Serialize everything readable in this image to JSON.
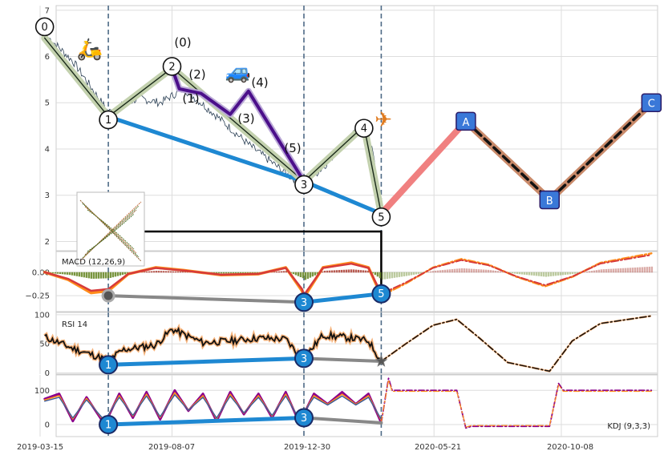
{
  "chart_data": {
    "type": "line",
    "x_dates": [
      "2019-03-15",
      "2019-08-07",
      "2019-12-30",
      "2020-05-21",
      "2020-10-08"
    ],
    "x_range": [
      "2019-03-15",
      "2021-01-20"
    ],
    "vlines": [
      "2019-05-29",
      "2019-12-30",
      "2020-03-24"
    ],
    "panels": [
      {
        "id": "price",
        "ylim": [
          1.8,
          7.1
        ],
        "yticks": [
          2,
          3,
          4,
          5,
          6,
          7
        ],
        "price_keypoints": [
          [
            "2019-03-25",
            6.4
          ],
          [
            "2019-04-20",
            5.9
          ],
          [
            "2019-05-29",
            4.8
          ],
          [
            "2019-07-01",
            5.1
          ],
          [
            "2019-07-25",
            5.0
          ],
          [
            "2019-08-20",
            5.3
          ],
          [
            "2019-09-20",
            4.8
          ],
          [
            "2019-10-30",
            4.1
          ],
          [
            "2019-12-15",
            3.4
          ],
          [
            "2019-12-30",
            3.25
          ],
          [
            "2020-01-20",
            3.6
          ],
          [
            "2020-02-15",
            4.2
          ],
          [
            "2020-03-05",
            4.5
          ],
          [
            "2020-03-15",
            3.9
          ],
          [
            "2020-03-24",
            2.6
          ]
        ],
        "waves": [
          {
            "label": "0",
            "date": "2019-03-20",
            "value": 6.4
          },
          {
            "label": "1",
            "date": "2019-05-29",
            "value": 4.7
          },
          {
            "label": "2",
            "date": "2019-08-07",
            "value": 5.75
          },
          {
            "label": "3",
            "date": "2019-12-30",
            "value": 3.3
          },
          {
            "label": "4",
            "date": "2020-03-05",
            "value": 4.5
          },
          {
            "label": "5",
            "date": "2020-03-24",
            "value": 2.6
          }
        ],
        "wave_markers": [
          "0",
          "1",
          "2",
          "3",
          "4",
          "5"
        ],
        "wave_labels_sub": [
          "(0)",
          "(1)",
          "(2)",
          "(3)",
          "(4)",
          "(5)"
        ],
        "sub_waves": [
          [
            "2019-08-07",
            5.75
          ],
          [
            "2019-08-15",
            5.3
          ],
          [
            "2019-09-08",
            5.2
          ],
          [
            "2019-10-10",
            4.75
          ],
          [
            "2019-10-30",
            5.25
          ],
          [
            "2019-12-30",
            3.3
          ]
        ],
        "projection": [
          {
            "label": "A",
            "date": "2020-06-25",
            "value": 4.6
          },
          {
            "label": "B",
            "date": "2020-09-25",
            "value": 2.9
          },
          {
            "label": "C",
            "date": "2021-01-15",
            "value": 5.0
          }
        ]
      },
      {
        "id": "macd",
        "label": "MACD (12,26,9)",
        "ylim": [
          -0.42,
          0.22
        ],
        "yticks": [
          0.0,
          -0.25
        ],
        "ytick_labels": [
          "0.00",
          "−0.25"
        ],
        "macd_keypoints": [
          [
            "2019-03-20",
            0.0
          ],
          [
            "2019-04-15",
            -0.08
          ],
          [
            "2019-05-10",
            -0.22
          ],
          [
            "2019-05-29",
            -0.2
          ],
          [
            "2019-06-20",
            -0.02
          ],
          [
            "2019-07-20",
            0.05
          ],
          [
            "2019-08-20",
            0.02
          ],
          [
            "2019-09-30",
            -0.03
          ],
          [
            "2019-11-10",
            -0.02
          ],
          [
            "2019-12-10",
            0.05
          ],
          [
            "2019-12-28",
            -0.2
          ],
          [
            "2019-12-30",
            -0.27
          ],
          [
            "2020-01-20",
            0.05
          ],
          [
            "2020-02-20",
            0.1
          ],
          [
            "2020-03-10",
            0.05
          ],
          [
            "2020-03-24",
            -0.25
          ]
        ],
        "forecast_keypoints": [
          [
            "2020-03-24",
            -0.25
          ],
          [
            "2020-04-20",
            -0.12
          ],
          [
            "2020-05-20",
            0.05
          ],
          [
            "2020-06-20",
            0.14
          ],
          [
            "2020-07-20",
            0.08
          ],
          [
            "2020-08-20",
            -0.05
          ],
          [
            "2020-09-20",
            -0.15
          ],
          [
            "2020-10-20",
            -0.05
          ],
          [
            "2020-11-20",
            0.1
          ],
          [
            "2021-01-15",
            0.2
          ]
        ],
        "divergence": [
          {
            "label": "1",
            "date": "2019-05-29",
            "value": -0.25
          },
          {
            "label": "3",
            "date": "2019-12-30",
            "value": -0.32
          },
          {
            "label": "5",
            "date": "2020-03-24",
            "value": -0.23
          }
        ]
      },
      {
        "id": "rsi",
        "label": "RSI 14",
        "ylim": [
          -2,
          104
        ],
        "yticks": [
          0,
          50,
          100
        ],
        "rsi_keypoints": [
          [
            "2019-03-20",
            62
          ],
          [
            "2019-04-20",
            42
          ],
          [
            "2019-05-29",
            22
          ],
          [
            "2019-06-15",
            40
          ],
          [
            "2019-07-20",
            48
          ],
          [
            "2019-08-07",
            75
          ],
          [
            "2019-09-10",
            52
          ],
          [
            "2019-10-10",
            55
          ],
          [
            "2019-11-10",
            60
          ],
          [
            "2019-12-10",
            58
          ],
          [
            "2019-12-25",
            30
          ],
          [
            "2019-12-30",
            25
          ],
          [
            "2020-01-20",
            65
          ],
          [
            "2020-02-20",
            60
          ],
          [
            "2020-03-10",
            55
          ],
          [
            "2020-03-24",
            20
          ]
        ],
        "forecast_keypoints": [
          [
            "2020-03-24",
            20
          ],
          [
            "2020-04-20",
            50
          ],
          [
            "2020-05-20",
            82
          ],
          [
            "2020-06-15",
            92
          ],
          [
            "2020-07-10",
            60
          ],
          [
            "2020-08-10",
            18
          ],
          [
            "2020-09-25",
            3
          ],
          [
            "2020-10-20",
            55
          ],
          [
            "2020-11-20",
            85
          ],
          [
            "2021-01-15",
            98
          ]
        ],
        "divergence": [
          {
            "label": "1",
            "date": "2019-05-29",
            "value": 14
          },
          {
            "label": "3",
            "date": "2019-12-30",
            "value": 25
          }
        ],
        "star": {
          "date": "2020-03-24",
          "value": 20
        }
      },
      {
        "id": "kdj",
        "label": "KDJ (9,3,3)",
        "ylim": [
          -35,
          145
        ],
        "yticks": [
          0,
          100
        ],
        "kdj_keypoints": [
          [
            "2019-03-20",
            75
          ],
          [
            "2019-04-05",
            90
          ],
          [
            "2019-04-20",
            10
          ],
          [
            "2019-05-05",
            80
          ],
          [
            "2019-05-25",
            0
          ],
          [
            "2019-06-10",
            90
          ],
          [
            "2019-06-25",
            20
          ],
          [
            "2019-07-10",
            95
          ],
          [
            "2019-07-25",
            15
          ],
          [
            "2019-08-10",
            100
          ],
          [
            "2019-08-25",
            40
          ],
          [
            "2019-09-10",
            90
          ],
          [
            "2019-09-25",
            10
          ],
          [
            "2019-10-10",
            95
          ],
          [
            "2019-10-25",
            30
          ],
          [
            "2019-11-10",
            90
          ],
          [
            "2019-11-25",
            20
          ],
          [
            "2019-12-10",
            95
          ],
          [
            "2019-12-25",
            5
          ],
          [
            "2020-01-10",
            90
          ],
          [
            "2020-01-25",
            60
          ],
          [
            "2020-02-10",
            95
          ],
          [
            "2020-02-25",
            60
          ],
          [
            "2020-03-10",
            90
          ],
          [
            "2020-03-24",
            5
          ]
        ],
        "forecast_keypoints": [
          [
            "2020-03-24",
            5
          ],
          [
            "2020-04-01",
            135
          ],
          [
            "2020-04-05",
            100
          ],
          [
            "2020-06-15",
            100
          ],
          [
            "2020-06-25",
            -10
          ],
          [
            "2020-07-01",
            -5
          ],
          [
            "2020-09-25",
            -5
          ],
          [
            "2020-10-05",
            120
          ],
          [
            "2020-10-10",
            100
          ],
          [
            "2021-01-15",
            100
          ]
        ],
        "divergence": [
          {
            "label": "1",
            "date": "2019-05-29",
            "value": 0
          },
          {
            "label": "3",
            "date": "2019-12-30",
            "value": 20
          }
        ]
      }
    ]
  }
}
